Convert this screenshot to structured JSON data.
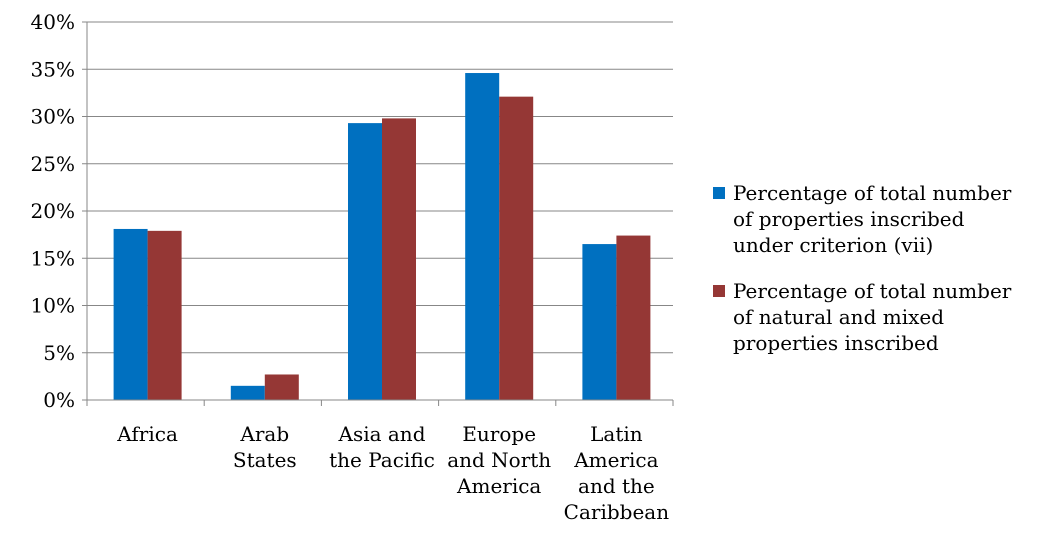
{
  "chart_data": {
    "type": "bar",
    "title": "",
    "xlabel": "",
    "ylabel": "",
    "ylim": [
      0,
      40
    ],
    "y_ticks": [
      "0%",
      "5%",
      "10%",
      "15%",
      "20%",
      "25%",
      "30%",
      "35%",
      "40%"
    ],
    "y_tick_values": [
      0,
      5,
      10,
      15,
      20,
      25,
      30,
      35,
      40
    ],
    "grid": true,
    "legend_position": "right",
    "categories": [
      [
        "Africa"
      ],
      [
        "Arab",
        "States"
      ],
      [
        "Asia and",
        "the Pacific"
      ],
      [
        "Europe",
        "and North",
        "America"
      ],
      [
        "Latin",
        "America",
        "and the",
        "Caribbean"
      ]
    ],
    "series": [
      {
        "name": [
          "Percentage of total number",
          "of properties inscribed",
          "under criterion (vii)"
        ],
        "color": "#0070C0",
        "values": [
          18.1,
          1.5,
          29.3,
          34.6,
          16.5
        ]
      },
      {
        "name": [
          "Percentage of total number",
          "of natural and mixed",
          "properties inscribed"
        ],
        "color": "#953735",
        "values": [
          17.9,
          2.7,
          29.8,
          32.1,
          17.4
        ]
      }
    ]
  }
}
